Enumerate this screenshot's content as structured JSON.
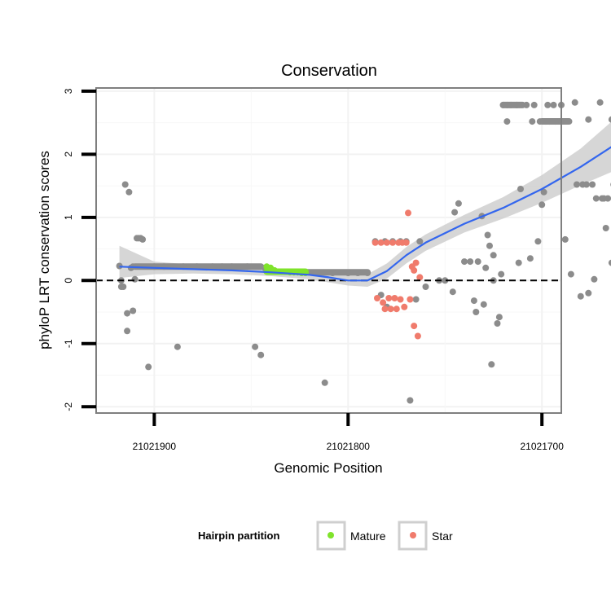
{
  "chart_data": {
    "type": "scatter",
    "title": "Conservation",
    "xlabel": "Genomic Position",
    "ylabel": "phyloP LRT conservation scores",
    "x_reversed": true,
    "xlim": [
      21021930,
      21021690
    ],
    "ylim": [
      -2.1,
      3.05
    ],
    "x_ticks": [
      21021900,
      21021800,
      21021700
    ],
    "x_tick_labels": [
      "21021900",
      "21021800",
      "21021700"
    ],
    "y_ticks": [
      -2,
      -1,
      0,
      1,
      2,
      3
    ],
    "y_tick_labels": [
      "-2",
      "-1",
      "0",
      "1",
      "2",
      "3"
    ],
    "reference_line": {
      "y": 0,
      "style": "dashed"
    },
    "grid": true,
    "legend": {
      "title": "Hairpin partition",
      "position": "bottom",
      "entries": [
        {
          "label": "Mature",
          "color": "#7fe32b"
        },
        {
          "label": "Star",
          "color": "#f07b6c"
        }
      ]
    },
    "colors": {
      "other": "#8c8c8c",
      "mature": "#7fe32b",
      "star": "#f07b6c",
      "smooth": "#3366ee",
      "ribbon": "#c8c8c8"
    },
    "series": [
      {
        "name": "Other",
        "points": [
          [
            21021918,
            0.23
          ],
          [
            21021917,
            -0.1
          ],
          [
            21021917,
            0.0
          ],
          [
            21021916,
            -0.1
          ],
          [
            21021915,
            1.52
          ],
          [
            21021914,
            -0.8
          ],
          [
            21021914,
            -0.52
          ],
          [
            21021913,
            1.4
          ],
          [
            21021912,
            0.2
          ],
          [
            21021911,
            -0.48
          ],
          [
            21021911,
            0.22
          ],
          [
            21021910,
            0.02
          ],
          [
            21021909,
            0.67
          ],
          [
            21021908,
            0.67
          ],
          [
            21021907,
            0.67
          ],
          [
            21021906,
            0.65
          ],
          [
            21021903,
            -1.37
          ],
          [
            21021900,
            0.22
          ],
          [
            21021895,
            0.22
          ],
          [
            21021888,
            -1.05
          ],
          [
            21021885,
            0.22
          ],
          [
            21021878,
            0.22
          ],
          [
            21021870,
            0.22
          ],
          [
            21021865,
            0.22
          ],
          [
            21021860,
            0.22
          ],
          [
            21021852,
            0.22
          ],
          [
            21021848,
            -1.05
          ],
          [
            21021845,
            -1.18
          ],
          [
            21021843,
            0.2
          ],
          [
            21021812,
            -1.62
          ],
          [
            21021808,
            0.12
          ],
          [
            21021800,
            0.12
          ],
          [
            21021795,
            0.12
          ],
          [
            21021790,
            0.12
          ],
          [
            21021786,
            0.62
          ],
          [
            21021783,
            -0.23
          ],
          [
            21021781,
            0.62
          ],
          [
            21021780,
            -0.42
          ],
          [
            21021777,
            0.62
          ],
          [
            21021773,
            0.62
          ],
          [
            21021770,
            0.62
          ],
          [
            21021768,
            -1.9
          ],
          [
            21021765,
            -0.3
          ],
          [
            21021763,
            0.62
          ],
          [
            21021760,
            -0.1
          ],
          [
            21021753,
            0.0
          ],
          [
            21021750,
            0.0
          ],
          [
            21021746,
            -0.18
          ],
          [
            21021745,
            1.08
          ],
          [
            21021743,
            1.22
          ],
          [
            21021740,
            0.3
          ],
          [
            21021737,
            0.3
          ],
          [
            21021735,
            -0.32
          ],
          [
            21021734,
            -0.5
          ],
          [
            21021733,
            0.3
          ],
          [
            21021731,
            1.02
          ],
          [
            21021730,
            -0.38
          ],
          [
            21021729,
            0.2
          ],
          [
            21021728,
            0.72
          ],
          [
            21021727,
            0.55
          ],
          [
            21021726,
            -1.33
          ],
          [
            21021725,
            0.4
          ],
          [
            21021725,
            0.0
          ],
          [
            21021723,
            -0.68
          ],
          [
            21021722,
            -0.58
          ],
          [
            21021721,
            0.1
          ],
          [
            21021720,
            2.78
          ],
          [
            21021718,
            2.52
          ],
          [
            21021718,
            2.78
          ],
          [
            21021716,
            2.78
          ],
          [
            21021713,
            2.78
          ],
          [
            21021712,
            0.28
          ],
          [
            21021711,
            1.45
          ],
          [
            21021708,
            2.78
          ],
          [
            21021706,
            0.35
          ],
          [
            21021705,
            2.52
          ],
          [
            21021704,
            2.78
          ],
          [
            21021702,
            0.62
          ],
          [
            21021701,
            2.52
          ],
          [
            21021700,
            1.2
          ],
          [
            21021699,
            1.4
          ],
          [
            21021698,
            2.52
          ],
          [
            21021697,
            2.78
          ],
          [
            21021696,
            2.52
          ],
          [
            21021694,
            2.78
          ],
          [
            21021693,
            2.52
          ],
          [
            21021690,
            2.78
          ],
          [
            21021688,
            0.65
          ],
          [
            21021685,
            0.1
          ],
          [
            21021683,
            2.82
          ],
          [
            21021682,
            1.52
          ],
          [
            21021680,
            -0.25
          ],
          [
            21021679,
            1.52
          ],
          [
            21021677,
            1.52
          ],
          [
            21021676,
            -0.2
          ],
          [
            21021676,
            2.55
          ],
          [
            21021674,
            1.52
          ],
          [
            21021673,
            0.02
          ],
          [
            21021672,
            1.3
          ],
          [
            21021670,
            2.82
          ],
          [
            21021669,
            1.3
          ],
          [
            21021668,
            1.3
          ],
          [
            21021667,
            0.83
          ],
          [
            21021666,
            1.3
          ],
          [
            21021664,
            2.55
          ],
          [
            21021664,
            0.28
          ],
          [
            21021663,
            1.52
          ]
        ],
        "bands": [
          {
            "x0": 21021910,
            "x1": 21021845,
            "y": 0.22
          },
          {
            "x0": 21021822,
            "x1": 21021790,
            "y": 0.13
          },
          {
            "x0": 21021720,
            "x1": 21021710,
            "y": 2.78
          },
          {
            "x0": 21021700,
            "x1": 21021686,
            "y": 2.52
          }
        ]
      },
      {
        "name": "Mature",
        "points": [
          [
            21021842,
            0.22
          ],
          [
            21021840,
            0.2
          ],
          [
            21021838,
            0.16
          ],
          [
            21021836,
            0.14
          ],
          [
            21021834,
            0.14
          ],
          [
            21021832,
            0.14
          ],
          [
            21021830,
            0.13
          ],
          [
            21021828,
            0.13
          ],
          [
            21021826,
            0.13
          ],
          [
            21021824,
            0.12
          ],
          [
            21021822,
            0.12
          ]
        ],
        "bands": [
          {
            "x0": 21021842,
            "x1": 21021822,
            "y": 0.14
          }
        ]
      },
      {
        "name": "Star",
        "points": [
          [
            21021786,
            0.6
          ],
          [
            21021785,
            -0.28
          ],
          [
            21021783,
            0.6
          ],
          [
            21021782,
            -0.35
          ],
          [
            21021781,
            -0.45
          ],
          [
            21021780,
            0.6
          ],
          [
            21021779,
            -0.28
          ],
          [
            21021778,
            -0.45
          ],
          [
            21021777,
            0.6
          ],
          [
            21021776,
            -0.28
          ],
          [
            21021775,
            -0.45
          ],
          [
            21021774,
            0.6
          ],
          [
            21021773,
            -0.3
          ],
          [
            21021772,
            0.6
          ],
          [
            21021771,
            -0.42
          ],
          [
            21021770,
            0.6
          ],
          [
            21021769,
            1.07
          ],
          [
            21021768,
            -0.3
          ],
          [
            21021767,
            0.22
          ],
          [
            21021766,
            0.16
          ],
          [
            21021766,
            -0.72
          ],
          [
            21021765,
            0.28
          ],
          [
            21021764,
            -0.88
          ],
          [
            21021763,
            0.05
          ]
        ],
        "bands": []
      }
    ],
    "smooth_line": {
      "x": [
        21021918,
        21021900,
        21021880,
        21021860,
        21021840,
        21021820,
        21021810,
        21021800,
        21021790,
        21021780,
        21021770,
        21021760,
        21021740,
        21021720,
        21021700,
        21021680,
        21021664
      ],
      "y": [
        0.22,
        0.2,
        0.18,
        0.16,
        0.13,
        0.09,
        0.05,
        0.0,
        0.0,
        0.15,
        0.4,
        0.6,
        0.9,
        1.15,
        1.45,
        1.8,
        2.12
      ],
      "lower": [
        0.04,
        0.1,
        0.11,
        0.1,
        0.07,
        0.02,
        -0.03,
        -0.08,
        -0.1,
        0.03,
        0.27,
        0.47,
        0.76,
        0.98,
        1.23,
        1.51,
        1.72
      ],
      "upper": [
        0.55,
        0.3,
        0.25,
        0.22,
        0.19,
        0.16,
        0.13,
        0.08,
        0.1,
        0.27,
        0.53,
        0.73,
        1.04,
        1.32,
        1.67,
        2.09,
        2.52
      ]
    }
  }
}
